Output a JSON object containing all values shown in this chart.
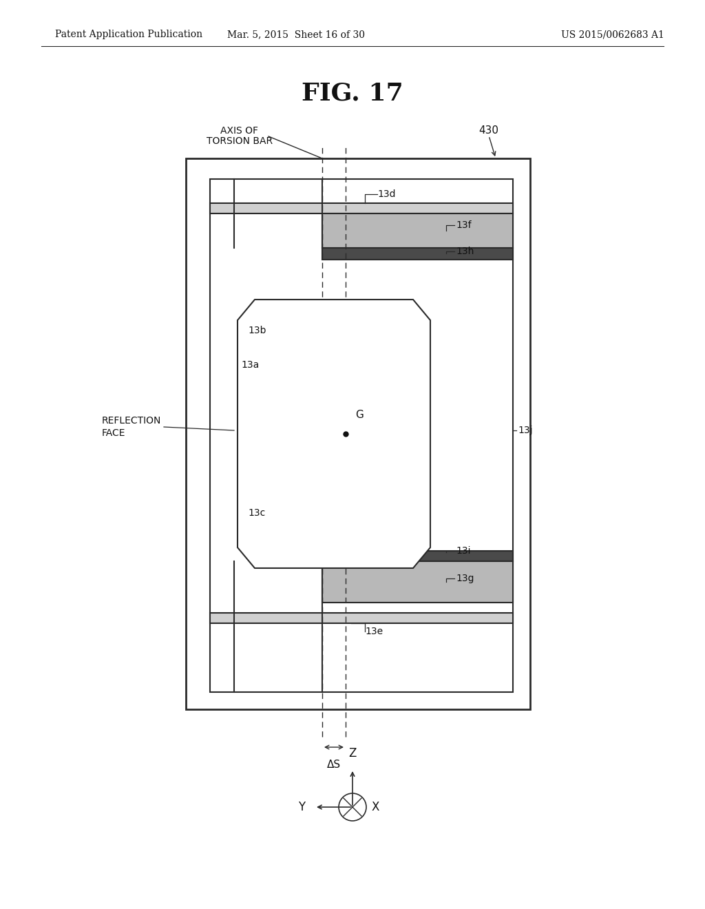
{
  "title": "FIG. 17",
  "header_left": "Patent Application Publication",
  "header_mid": "Mar. 5, 2015  Sheet 16 of 30",
  "header_right": "US 2015/0062683 A1",
  "background": "#ffffff",
  "line_color": "#2a2a2a",
  "dark_bar_color": "#4a4a4a",
  "light_bar_color": "#b8b8b8",
  "plate_color": "#d0d0d0",
  "fig_label": "430",
  "axis_label_line1": "AXIS OF",
  "axis_label_line2": "TORSION BAR"
}
